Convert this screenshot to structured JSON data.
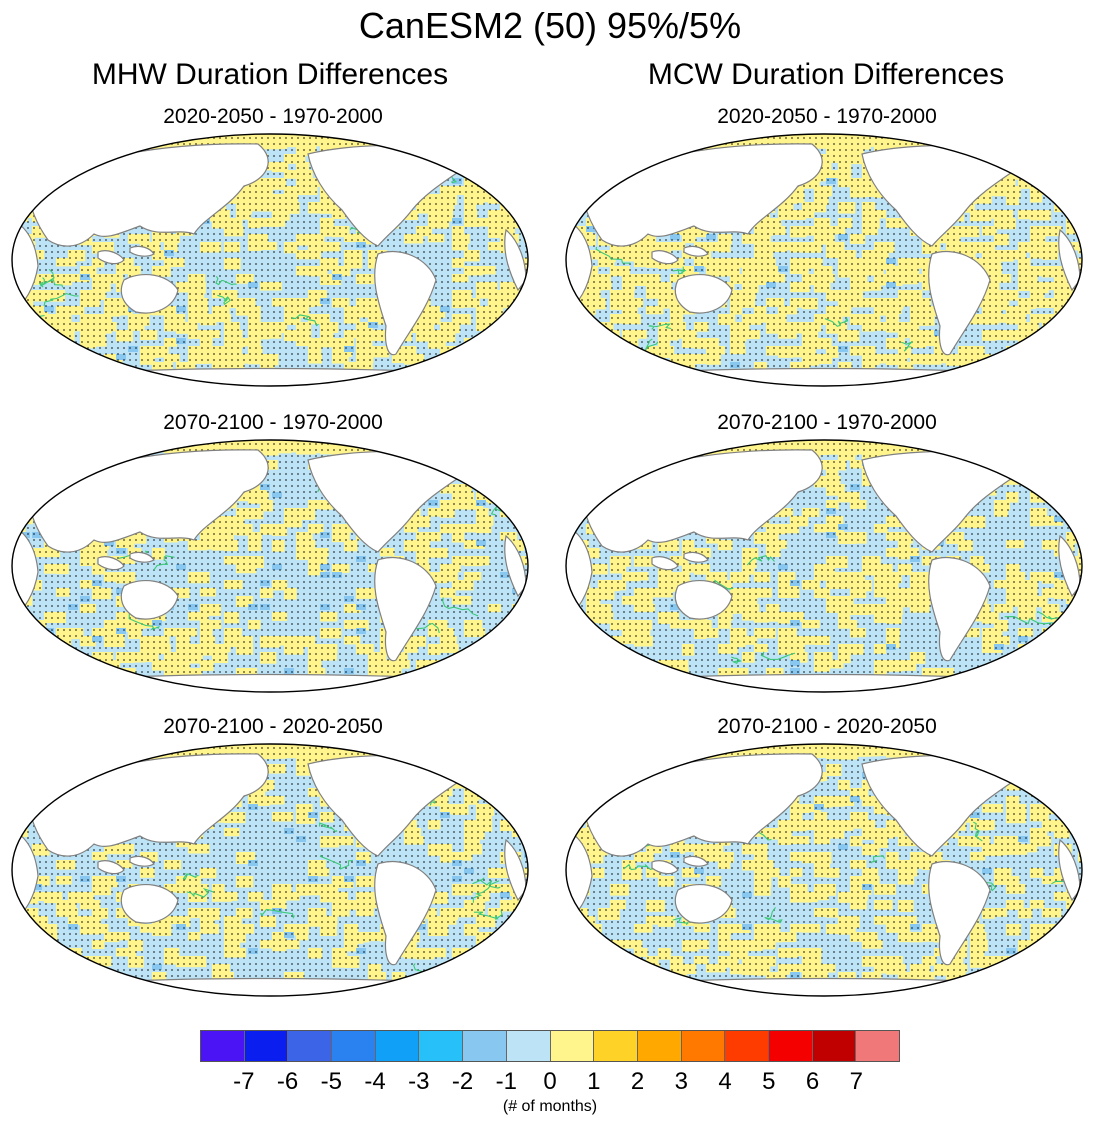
{
  "title": "CanESM2 (50) 95%/5%",
  "columns": [
    {
      "title": "MHW Duration Differences",
      "panels": [
        "2020-2050 - 1970-2000",
        "2070-2100 - 1970-2000",
        "2070-2100 - 2020-2050"
      ]
    },
    {
      "title": "MCW Duration Differences",
      "panels": [
        "2020-2050 - 1970-2000",
        "2070-2100 - 1970-2000",
        "2070-2100 - 2020-2050"
      ]
    }
  ],
  "colorbar": {
    "labels": [
      "-7",
      "-6",
      "-5",
      "-4",
      "-3",
      "-2",
      "-1",
      "0",
      "1",
      "2",
      "3",
      "4",
      "5",
      "6",
      "7"
    ],
    "colors": [
      "#4a14f5",
      "#0a1ef0",
      "#3c64e6",
      "#2a82f0",
      "#10a0f8",
      "#28c0f8",
      "#88c8f0",
      "#bce4f6",
      "#fff58c",
      "#ffd228",
      "#ffa800",
      "#ff7800",
      "#ff3c00",
      "#f50000",
      "#c00000",
      "#f07878"
    ],
    "unit": "(# of months)"
  },
  "map_colors": {
    "ocean_light_blue": "#bce4f6",
    "yellow": "#fff58c",
    "mid_blue": "#88c8f0",
    "contour_green": "#3cc878",
    "coast": "#808080"
  }
}
